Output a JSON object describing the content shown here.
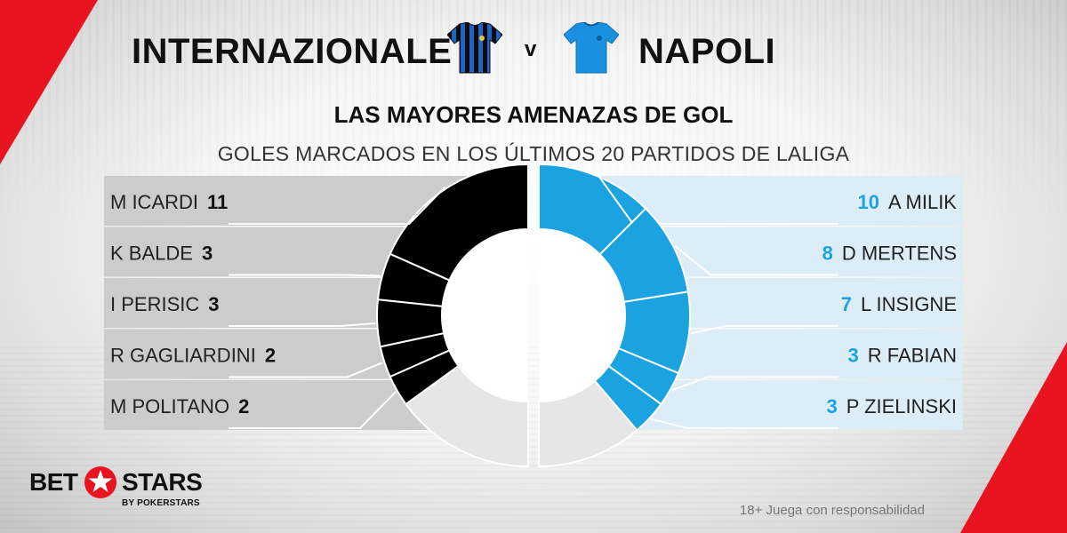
{
  "header": {
    "home_team": "INTERNAZIONALE",
    "vs": "v",
    "away_team": "NAPOLI",
    "home_kit_icon": "inter-jersey-icon",
    "away_kit_icon": "napoli-jersey-icon"
  },
  "chart_data": {
    "type": "pie",
    "style": "split-half-donut",
    "title": "LAS MAYORES AMENAZAS DE GOL",
    "subtitle": "GOLES MARCADOS EN LOS ÚLTIMOS 20 PARTIDOS DE LALIGA",
    "series": [
      {
        "name": "INTERNAZIONALE",
        "side": "left",
        "color": "#000000",
        "remainder_color": "#e6e6e6",
        "label_bg": "#cccccc",
        "total": 30,
        "players": [
          {
            "name": "M ICARDI",
            "goals": 11
          },
          {
            "name": "K BALDE",
            "goals": 3
          },
          {
            "name": "I PERISIC",
            "goals": 3
          },
          {
            "name": "R GAGLIARDINI",
            "goals": 2
          },
          {
            "name": "M POLITANO",
            "goals": 2
          }
        ]
      },
      {
        "name": "NAPOLI",
        "side": "right",
        "color": "#1aa3e0",
        "remainder_color": "#e6e6e6",
        "label_bg": "#dcedf8",
        "total": 40,
        "players": [
          {
            "name": "A MILIK",
            "goals": 10
          },
          {
            "name": "D MERTENS",
            "goals": 8
          },
          {
            "name": "L INSIGNE",
            "goals": 7
          },
          {
            "name": "R FABIAN",
            "goals": 3
          },
          {
            "name": "P ZIELINSKI",
            "goals": 3
          }
        ]
      }
    ]
  },
  "branding": {
    "logo_bet": "BET",
    "logo_stars": "STARS",
    "logo_by": "BY POKERSTARS",
    "accent": "#e8141f"
  },
  "footer": {
    "disclaimer": "18+ Juega con responsabilidad"
  }
}
